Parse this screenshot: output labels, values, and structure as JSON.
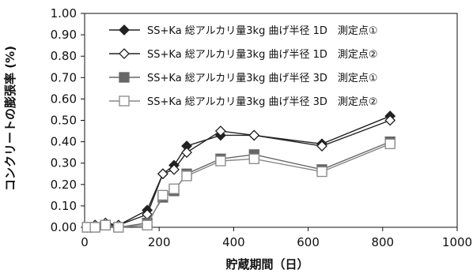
{
  "chart_data": {
    "type": "line",
    "title": "",
    "xlabel": "貯蔵期間（日）",
    "ylabel": "コンクリートの膨張率 (%)",
    "xlim": [
      0,
      1000
    ],
    "ylim": [
      0,
      1.0
    ],
    "x_ticks": [
      "0",
      "200",
      "400",
      "600",
      "800",
      "1000"
    ],
    "y_ticks": [
      "0.00",
      "0.10",
      "0.20",
      "0.30",
      "0.40",
      "0.50",
      "0.60",
      "0.70",
      "0.80",
      "0.90",
      "1.00"
    ],
    "grid": "none",
    "legend_position": "top-right",
    "series": [
      {
        "name": "SS+Ka 総アルカリ量3kg 曲げ半径 1D　測定点①",
        "marker": "diamond-filled",
        "color": "#222222",
        "x": [
          7,
          28,
          56,
          91,
          168,
          210,
          240,
          274,
          365,
          455,
          637,
          820
        ],
        "y": [
          0.0,
          0.01,
          0.01,
          0.01,
          0.08,
          0.25,
          0.29,
          0.38,
          0.43,
          0.43,
          0.39,
          0.52
        ]
      },
      {
        "name": "SS+Ka 総アルカリ量3kg 曲げ半径 1D　測定点②",
        "marker": "diamond-open",
        "color": "#222222",
        "x": [
          7,
          28,
          56,
          91,
          168,
          210,
          240,
          274,
          365,
          455,
          637,
          820
        ],
        "y": [
          0.0,
          0.01,
          0.02,
          0.01,
          0.06,
          0.25,
          0.27,
          0.35,
          0.45,
          0.43,
          0.38,
          0.5
        ]
      },
      {
        "name": "SS+Ka 総アルカリ量3kg 曲げ半径 3D　測定点①",
        "marker": "square-filled",
        "color": "#666666",
        "x": [
          7,
          28,
          56,
          91,
          168,
          210,
          240,
          274,
          365,
          455,
          637,
          820
        ],
        "y": [
          0.0,
          0.0,
          0.01,
          0.0,
          0.02,
          0.14,
          0.17,
          0.25,
          0.32,
          0.34,
          0.27,
          0.4
        ]
      },
      {
        "name": "SS+Ka 総アルカリ量3kg 曲げ半径 3D　測定点②",
        "marker": "square-open",
        "color": "#888888",
        "x": [
          7,
          28,
          56,
          91,
          168,
          210,
          240,
          274,
          365,
          455,
          637,
          820
        ],
        "y": [
          0.0,
          0.0,
          0.01,
          0.0,
          0.01,
          0.15,
          0.18,
          0.24,
          0.31,
          0.32,
          0.26,
          0.39
        ]
      }
    ]
  }
}
